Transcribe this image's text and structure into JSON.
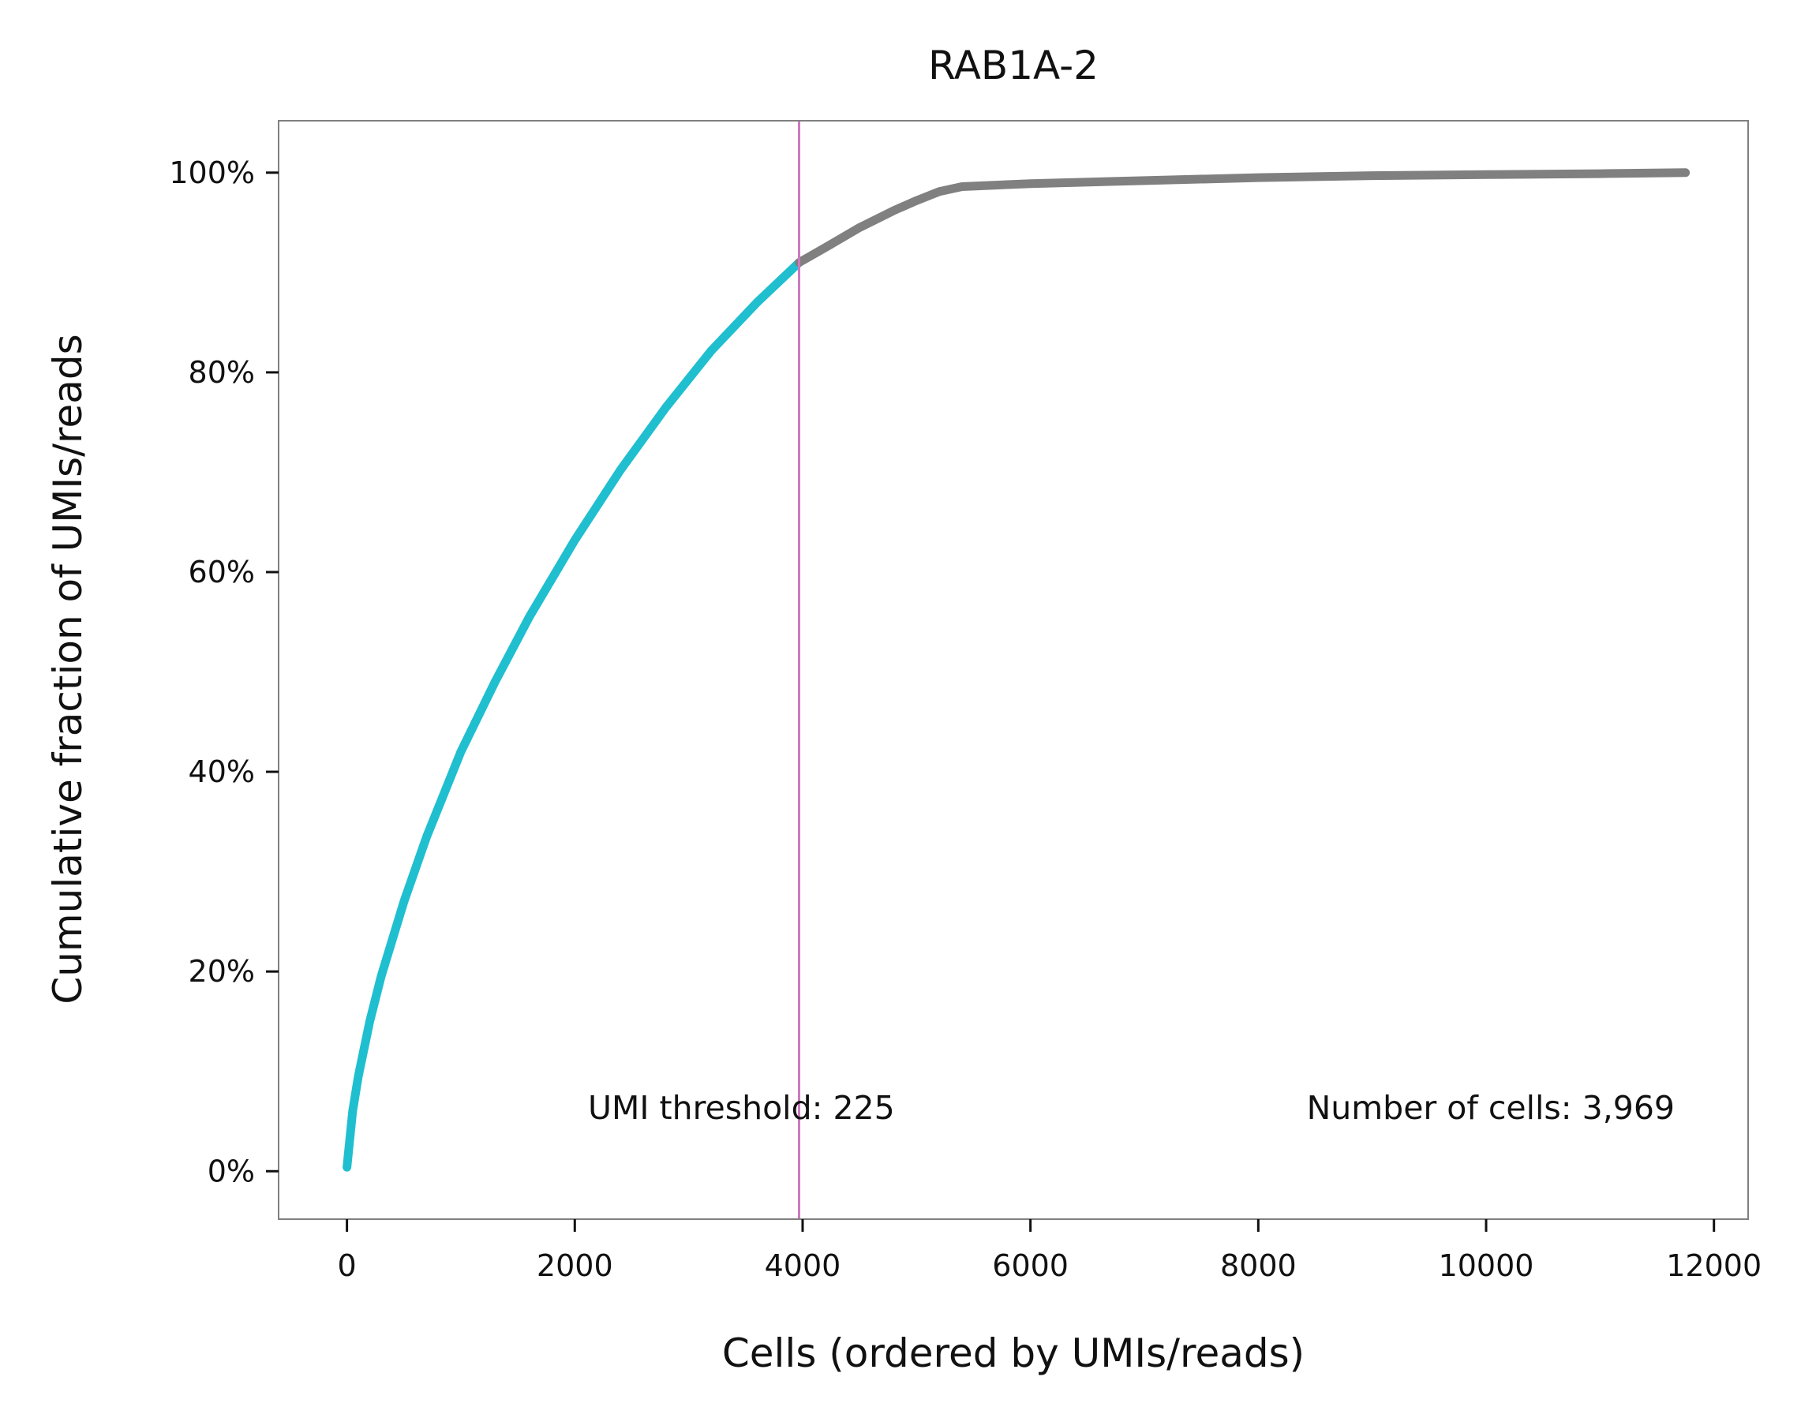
{
  "chart_data": {
    "type": "line",
    "title": "RAB1A-2",
    "xlabel": "Cells (ordered by UMIs/reads)",
    "ylabel": "Cumulative fraction of UMIs/reads",
    "xlim": [
      -600,
      12300
    ],
    "ylim": [
      -0.048,
      1.052
    ],
    "xticks": [
      0,
      2000,
      4000,
      6000,
      8000,
      10000,
      12000
    ],
    "xtick_labels": [
      "0",
      "2000",
      "4000",
      "6000",
      "8000",
      "10000",
      "12000"
    ],
    "yticks": [
      0,
      0.2,
      0.4,
      0.6,
      0.8,
      1.0
    ],
    "ytick_labels": [
      "0%",
      "20%",
      "40%",
      "60%",
      "80%",
      "100%"
    ],
    "grid": false,
    "colors": {
      "cells": "#1fbfcf",
      "background": "#808080",
      "threshold": "#cc79c0",
      "spine": "#808080",
      "tick": "#111111"
    },
    "threshold_x": 3969,
    "series": [
      {
        "segment": "cells",
        "x": [
          0,
          50,
          100,
          200,
          300,
          500,
          700,
          1000,
          1300,
          1600,
          2000,
          2400,
          2800,
          3200,
          3600,
          3969
        ],
        "y": [
          0.004,
          0.06,
          0.095,
          0.15,
          0.195,
          0.27,
          0.335,
          0.42,
          0.49,
          0.555,
          0.632,
          0.702,
          0.765,
          0.822,
          0.87,
          0.91
        ]
      },
      {
        "segment": "background",
        "x": [
          3969,
          4200,
          4500,
          4800,
          5000,
          5200,
          5400,
          6000,
          7000,
          8000,
          9000,
          10000,
          11000,
          11750
        ],
        "y": [
          0.91,
          0.925,
          0.945,
          0.962,
          0.972,
          0.981,
          0.986,
          0.989,
          0.992,
          0.995,
          0.997,
          0.998,
          0.999,
          1.0
        ]
      }
    ],
    "annotations": [
      {
        "text": "UMI threshold: 225"
      },
      {
        "text": "Number of cells: 3,969"
      }
    ]
  }
}
